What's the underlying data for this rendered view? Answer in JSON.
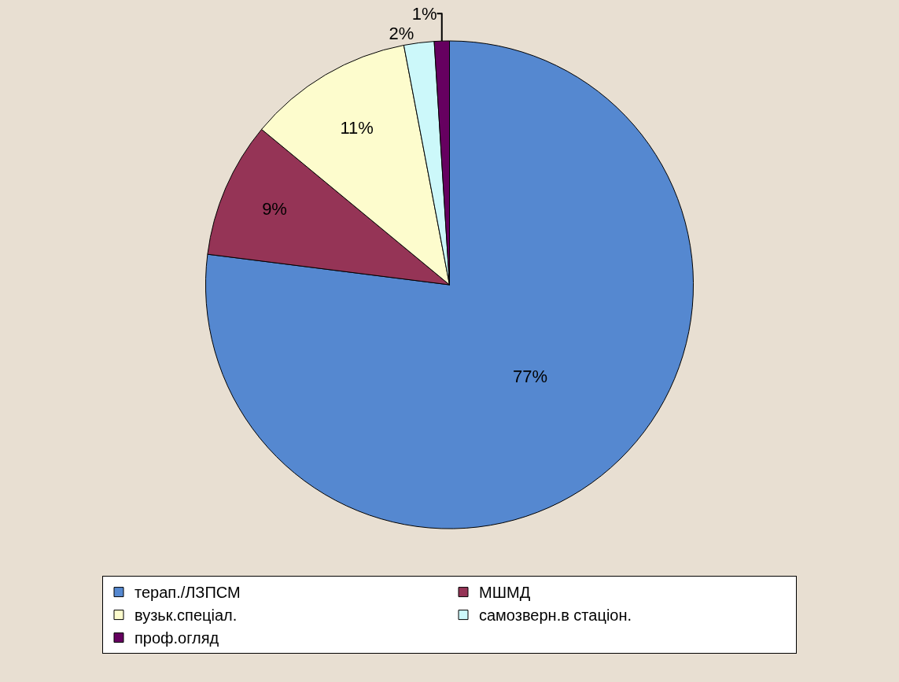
{
  "chart_data": {
    "type": "pie",
    "categories": [
      "терап./ЛЗПСМ",
      "МШМД",
      "вузьк.спеціал.",
      "самозверн.в стаціон.",
      "проф.огляд"
    ],
    "values": [
      77,
      9,
      11,
      2,
      1
    ],
    "value_labels": [
      "77%",
      "9%",
      "11%",
      "2%",
      "1%"
    ],
    "colors": [
      "#5588d0",
      "#953456",
      "#fdfccd",
      "#ccf8fa",
      "#660060"
    ],
    "legend": "bottom"
  }
}
